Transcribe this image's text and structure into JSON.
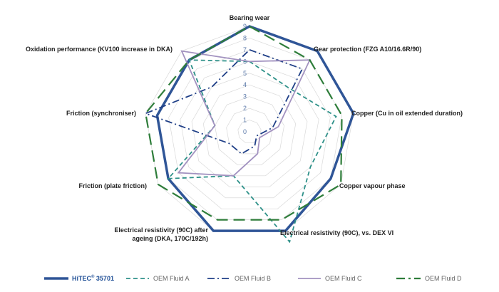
{
  "chart_data": {
    "type": "radar",
    "title": "",
    "categories": [
      "Bearing wear",
      "Gear protection (FZG A10/16.6R/90)",
      "Copper (Cu in oil extended duration)",
      "Copper vapour phase",
      "Electrical resistivity (90C), vs. DEX VI",
      "Electrical resistivity (90C) after ageing (DKA, 170C/192h)",
      "Friction (plate friction)",
      "Friction (synchroniser)",
      "Oxidation performance (KV100 increase in DKA)"
    ],
    "category_lines": [
      [
        "Bearing wear"
      ],
      [
        "Gear protection (FZG A10/16.6R/90)"
      ],
      [
        "Copper (Cu in oil extended duration)"
      ],
      [
        "Copper vapour phase"
      ],
      [
        "Electrical resistivity (90C), vs. DEX VI"
      ],
      [
        "Electrical resistivity (90C) after",
        "ageing (DKA, 170C/192h)"
      ],
      [
        "Friction (plate friction)"
      ],
      [
        "Friction (synchroniser)"
      ],
      [
        "Oxidation performance (KV100 increase in DKA)"
      ]
    ],
    "rmin": 0,
    "rmax": 9,
    "ticks": [
      "0",
      "1",
      "2",
      "3",
      "4",
      "5",
      "6",
      "7",
      "8",
      "9"
    ],
    "series": [
      {
        "name": "HiTEC® 35701",
        "name_main": "HiTEC",
        "name_sup": "®",
        "name_rest": " 35701",
        "color": "#2f5597",
        "style": "solid-thick",
        "values": [
          9,
          9,
          9,
          8,
          9,
          9,
          8,
          8,
          8
        ]
      },
      {
        "name": "OEM Fluid A",
        "color": "#2e9189",
        "style": "dash",
        "values": [
          6,
          5,
          7.5,
          6,
          10,
          4,
          8,
          3,
          8
        ]
      },
      {
        "name": "OEM Fluid B",
        "color": "#1f3f87",
        "style": "dashdot",
        "values": [
          7,
          7,
          2,
          0.7,
          1.3,
          2,
          2,
          9,
          5
        ]
      },
      {
        "name": "OEM Fluid C",
        "color": "#a292c0",
        "style": "solid",
        "values": [
          6,
          8,
          2.5,
          1,
          2,
          4,
          7,
          3,
          9
        ]
      },
      {
        "name": "OEM Fluid D",
        "color": "#2e7d3a",
        "style": "longdash",
        "values": [
          9,
          8,
          8,
          9,
          8,
          8,
          9,
          9,
          8
        ]
      }
    ],
    "grid": true,
    "legend_position": "bottom"
  }
}
